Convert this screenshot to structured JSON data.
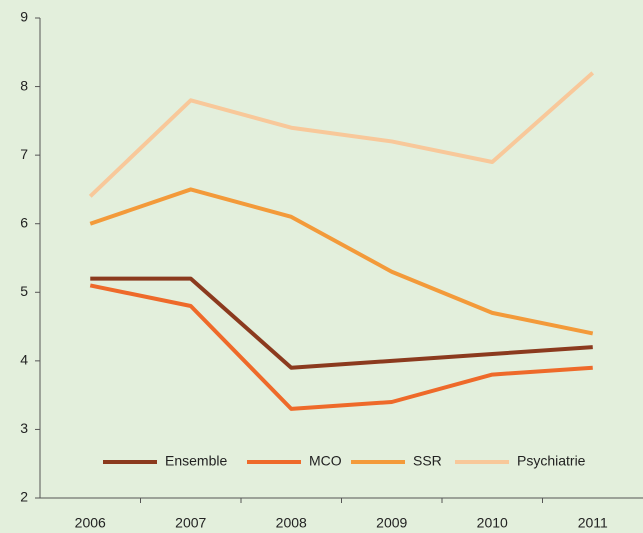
{
  "chart_data": {
    "type": "line",
    "categories": [
      "2006",
      "2007",
      "2008",
      "2009",
      "2010",
      "2011"
    ],
    "series": [
      {
        "name": "Ensemble",
        "color": "#8b3a1e",
        "values": [
          5.2,
          5.2,
          3.9,
          4.0,
          4.1,
          4.2
        ]
      },
      {
        "name": "MCO",
        "color": "#ee6a2a",
        "values": [
          5.1,
          4.8,
          3.3,
          3.4,
          3.8,
          3.9
        ]
      },
      {
        "name": "SSR",
        "color": "#f39a3a",
        "values": [
          6.0,
          6.5,
          6.1,
          5.3,
          4.7,
          4.4
        ]
      },
      {
        "name": "Psychiatrie",
        "color": "#f8c89a",
        "values": [
          6.4,
          7.8,
          7.4,
          7.2,
          6.9,
          8.2
        ]
      }
    ],
    "ylim": [
      2,
      9
    ],
    "yticks": [
      2,
      3,
      4,
      5,
      6,
      7,
      8,
      9
    ],
    "grid": false,
    "legend": "bottom",
    "background": "#e3efdc"
  }
}
